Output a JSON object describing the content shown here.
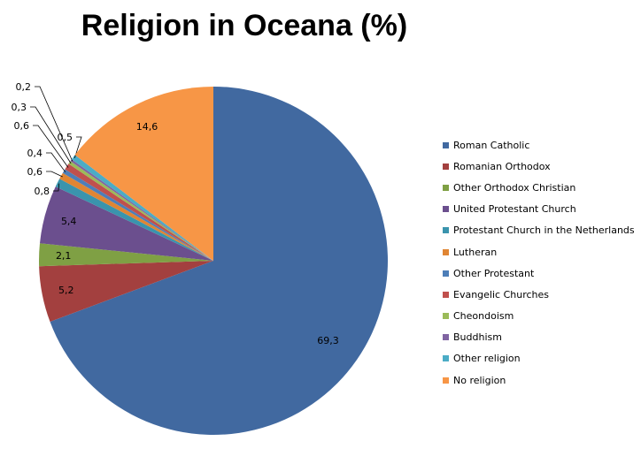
{
  "chart_data": {
    "type": "pie",
    "title": "Religion in Oceana (%)",
    "legend_position": "right",
    "start_angle_deg": 0,
    "direction": "clockwise",
    "slices": [
      {
        "name": "Roman Catholic",
        "value": 69.3,
        "label": "69,3",
        "color": "#4169A0"
      },
      {
        "name": "Romanian Orthodox",
        "value": 5.2,
        "label": "5,2",
        "color": "#A3403F"
      },
      {
        "name": "Other Orthodox Christian",
        "value": 2.1,
        "label": "2,1",
        "color": "#7FA044"
      },
      {
        "name": "United Protestant Church",
        "value": 5.4,
        "label": "5,4",
        "color": "#6B4F8E"
      },
      {
        "name": "Protestant Church in the Netherlands",
        "value": 0.8,
        "label": "0,8",
        "color": "#3A94AD"
      },
      {
        "name": "Lutheran",
        "value": 0.6,
        "label": "0,6",
        "color": "#E08533"
      },
      {
        "name": "Other Protestant",
        "value": 0.4,
        "label": "0,4",
        "color": "#4D7EB8"
      },
      {
        "name": "Evangelic Churches",
        "value": 0.6,
        "label": "0,6",
        "color": "#C0504D"
      },
      {
        "name": "Cheondoism",
        "value": 0.3,
        "label": "0,3",
        "color": "#9BBB59"
      },
      {
        "name": "Buddhism",
        "value": 0.2,
        "label": "0,2",
        "color": "#8064A2"
      },
      {
        "name": "Other religion",
        "value": 0.5,
        "label": "0,5",
        "color": "#4BACC6"
      },
      {
        "name": "No religion",
        "value": 14.6,
        "label": "14,6",
        "color": "#F79646"
      }
    ]
  }
}
